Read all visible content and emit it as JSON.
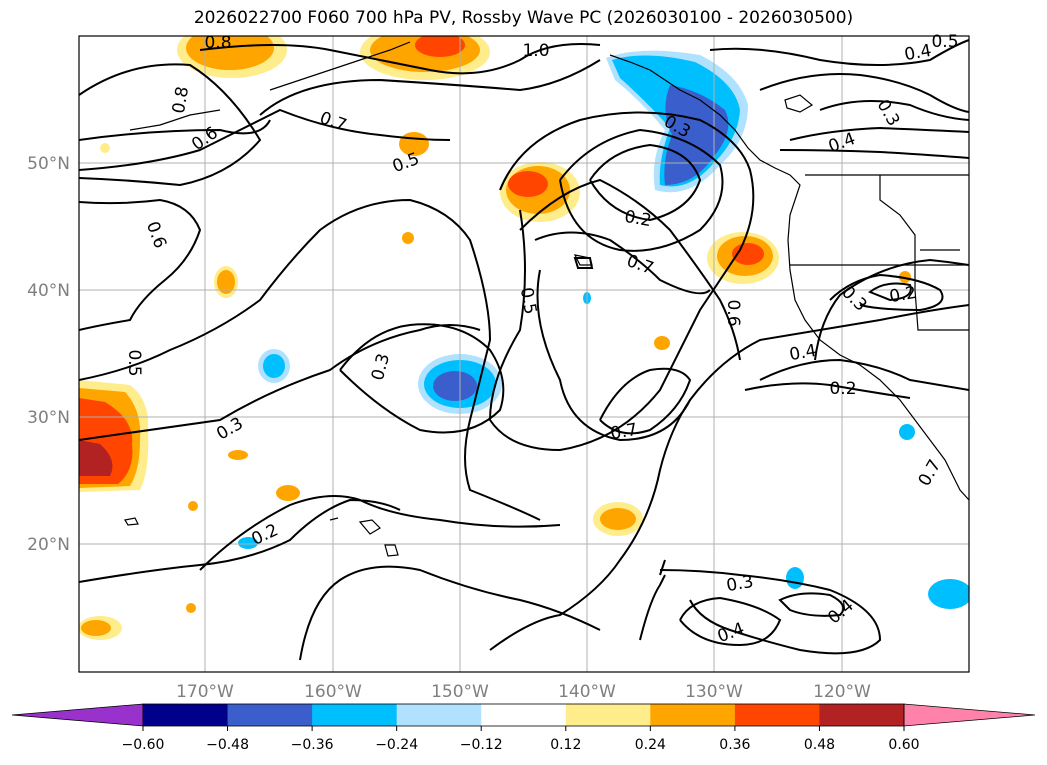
{
  "title": "2026022700 F060 700 hPa PV, Rossby Wave PC (2026030100 - 2026030500)",
  "lat_labels": [
    "50°N",
    "40°N",
    "30°N",
    "20°N"
  ],
  "lon_labels": [
    "170°W",
    "160°W",
    "150°W",
    "140°W",
    "130°W",
    "120°W"
  ],
  "contour_labels": [
    {
      "text": "0.8",
      "angle": 0
    },
    {
      "text": "1.0",
      "angle": 0
    },
    {
      "text": "0.5",
      "angle": 0
    },
    {
      "text": "0.4",
      "angle": -10
    },
    {
      "text": "0.8",
      "angle": -80
    },
    {
      "text": "0.6",
      "angle": -35
    },
    {
      "text": "0.7",
      "angle": 20
    },
    {
      "text": "0.5",
      "angle": -20
    },
    {
      "text": "0.3",
      "angle": 60
    },
    {
      "text": "0.4",
      "angle": -20
    },
    {
      "text": "0.3",
      "angle": 30
    },
    {
      "text": "0.6",
      "angle": 70
    },
    {
      "text": "0.2",
      "angle": 10
    },
    {
      "text": "0.7",
      "angle": 20
    },
    {
      "text": "0.5",
      "angle": 80
    },
    {
      "text": "0.6",
      "angle": 90
    },
    {
      "text": "0.2",
      "angle": -10
    },
    {
      "text": "0.3",
      "angle": 45
    },
    {
      "text": "0.5",
      "angle": 90
    },
    {
      "text": "0.3",
      "angle": -75
    },
    {
      "text": "0.4",
      "angle": -10
    },
    {
      "text": "0.2",
      "angle": 0
    },
    {
      "text": "0.3",
      "angle": -30
    },
    {
      "text": "0.7",
      "angle": -10
    },
    {
      "text": "0.2",
      "angle": -25
    },
    {
      "text": "0.3",
      "angle": -10
    },
    {
      "text": "0.4",
      "angle": -20
    },
    {
      "text": "0.4",
      "angle": -40
    },
    {
      "text": "0.7",
      "angle": -60
    }
  ],
  "colorbar": {
    "ticks": [
      "−0.60",
      "−0.48",
      "−0.36",
      "−0.24",
      "−0.12",
      "0.12",
      "0.24",
      "0.36",
      "0.48",
      "0.60"
    ],
    "levels": [
      -0.6,
      -0.48,
      -0.36,
      -0.24,
      -0.12,
      0.12,
      0.24,
      0.36,
      0.48,
      0.6
    ],
    "colors": [
      "#9932cc",
      "#00008b",
      "#3a5fcd",
      "#00bfff",
      "#b0e2ff",
      "#ffffff",
      "#ffec8b",
      "#ffa500",
      "#ff4500",
      "#b22222",
      "#ff82ab"
    ]
  },
  "colors": {
    "frame": "#000000",
    "grid": "#b0b0b0",
    "contour": "#000000",
    "tick_label": "#7f7f7f"
  }
}
